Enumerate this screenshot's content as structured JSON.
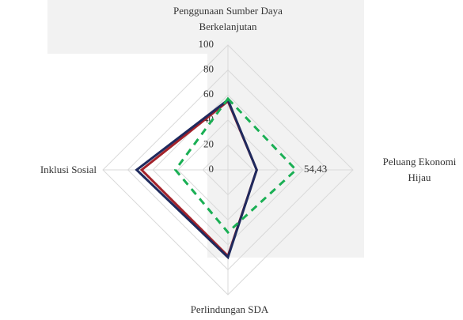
{
  "chart_data": {
    "type": "radar",
    "categories": [
      "Penggunaan Sumber Daya Berkelanjutan",
      "Peluang Ekonomi Hijau",
      "Perlindungan SDA",
      "Inklusi Sosial"
    ],
    "series": [
      {
        "color": "#a3222a",
        "values": [
          55,
          23,
          69,
          69
        ]
      },
      {
        "color": "#1f2a5e",
        "values": [
          56,
          23,
          70,
          73
        ]
      },
      {
        "color": "#1aaf54",
        "dashed": true,
        "values": [
          57,
          54.43,
          50,
          42
        ],
        "value_labels": [
          null,
          "54,43",
          null,
          null
        ]
      }
    ],
    "ylim": [
      0,
      100
    ],
    "yticks": [
      0,
      20,
      40,
      60,
      80,
      100
    ],
    "grid": true
  }
}
